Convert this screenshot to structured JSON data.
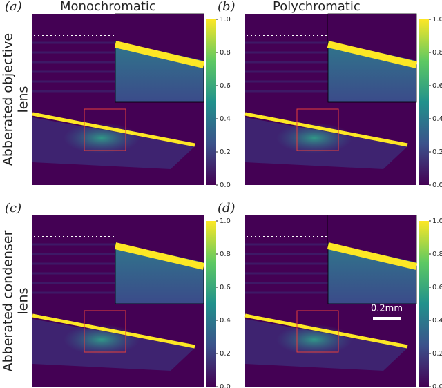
{
  "panels": [
    {
      "label": "(a)",
      "title": "Monochromatic"
    },
    {
      "label": "(b)",
      "title": "Polychromatic"
    },
    {
      "label": "(c)"
    },
    {
      "label": "(d)"
    }
  ],
  "row_labels": [
    [
      "Abberated objective",
      "lens"
    ],
    [
      "Abberated condenser",
      "lens"
    ]
  ],
  "colorbar": {
    "ticks": [
      "0.0",
      "0.2",
      "0.4",
      "0.6",
      "0.8",
      "1.0"
    ]
  },
  "scale_bar": "0.2mm"
}
